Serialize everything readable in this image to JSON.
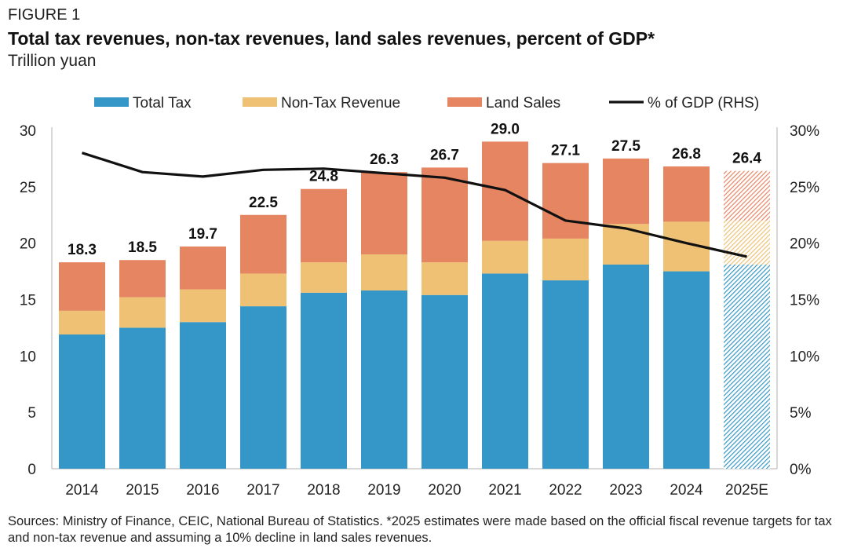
{
  "header": {
    "figure_label": "FIGURE 1",
    "title": "Total tax revenues, non-tax revenues, land sales revenues, percent of GDP*",
    "subtitle": "Trillion yuan"
  },
  "footer": {
    "sources": "Sources: Ministry of Finance, CEIC, National Bureau of Statistics. *2025 estimates were made based on the official fiscal revenue targets for tax and non-tax revenue and assuming a 10% decline in land sales revenues."
  },
  "colors": {
    "total_tax": "#3596c8",
    "non_tax": "#eec174",
    "land_sales": "#e68562",
    "gdp_line": "#111111",
    "axis": "#bfbfbf"
  },
  "chart_data": {
    "type": "bar",
    "stacked": true,
    "categories": [
      "2014",
      "2015",
      "2016",
      "2017",
      "2018",
      "2019",
      "2020",
      "2021",
      "2022",
      "2023",
      "2024",
      "2025E"
    ],
    "estimated_categories": [
      "2025E"
    ],
    "series": [
      {
        "name": "Total Tax",
        "key": "total_tax",
        "values": [
          11.9,
          12.5,
          13.0,
          14.4,
          15.6,
          15.8,
          15.4,
          17.3,
          16.7,
          18.1,
          17.5,
          18.1
        ]
      },
      {
        "name": "Non-Tax Revenue",
        "key": "non_tax",
        "values": [
          2.1,
          2.7,
          2.9,
          2.9,
          2.7,
          3.2,
          2.9,
          2.9,
          3.7,
          3.6,
          4.4,
          3.9
        ]
      },
      {
        "name": "Land Sales",
        "key": "land_sales",
        "values": [
          4.3,
          3.3,
          3.8,
          5.2,
          6.5,
          7.3,
          8.4,
          8.8,
          6.7,
          5.8,
          4.9,
          4.4
        ]
      }
    ],
    "totals": [
      "18.3",
      "18.5",
      "19.7",
      "22.5",
      "24.8",
      "26.3",
      "26.7",
      "29.0",
      "27.1",
      "27.5",
      "26.8",
      "26.4"
    ],
    "line_series": {
      "name": "% of GDP (RHS)",
      "axis": "right",
      "values": [
        28.0,
        26.3,
        25.9,
        26.5,
        26.6,
        26.2,
        25.8,
        24.7,
        22.0,
        21.3,
        20.0,
        18.8
      ]
    },
    "left_axis": {
      "ylim": [
        0,
        30
      ],
      "ticks": [
        "0",
        "5",
        "10",
        "15",
        "20",
        "25",
        "30"
      ]
    },
    "right_axis": {
      "ylim": [
        0,
        30
      ],
      "ticks": [
        "0%",
        "5%",
        "10%",
        "15%",
        "20%",
        "25%",
        "30%"
      ]
    },
    "legend": {
      "position": "top",
      "items": [
        {
          "label": "Total Tax",
          "key": "total_tax",
          "kind": "box"
        },
        {
          "label": "Non-Tax Revenue",
          "key": "non_tax",
          "kind": "box"
        },
        {
          "label": "Land Sales",
          "key": "land_sales",
          "kind": "box"
        },
        {
          "label": "% of GDP (RHS)",
          "key": "gdp_line",
          "kind": "line"
        }
      ]
    },
    "grid": false
  }
}
